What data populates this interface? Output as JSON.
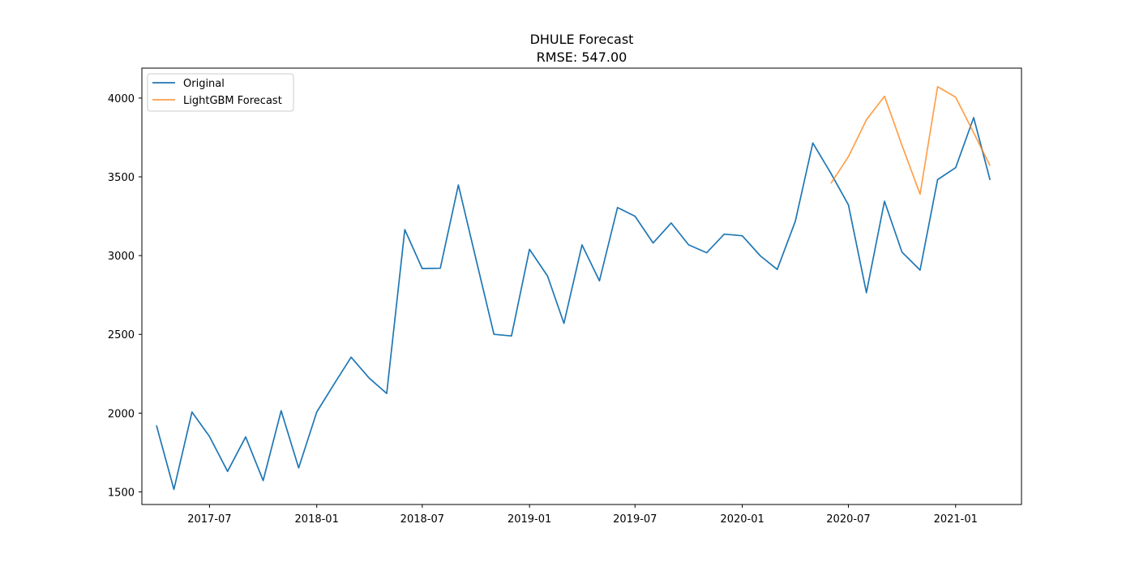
{
  "chart_data": {
    "type": "line",
    "title": "DHULE Forecast",
    "subtitle": "RMSE: 547.00",
    "xlabel": "",
    "ylabel": "",
    "xlim": [
      "2017-03-07",
      "2021-04-24"
    ],
    "ylim": [
      1420,
      4190
    ],
    "x_ticks": [
      "2017-07",
      "2018-01",
      "2018-07",
      "2019-01",
      "2019-07",
      "2020-01",
      "2020-07",
      "2021-01"
    ],
    "y_ticks": [
      1500,
      2000,
      2500,
      3000,
      3500,
      4000
    ],
    "grid": false,
    "legend": {
      "position": "top-left"
    },
    "series": [
      {
        "name": "Original",
        "color": "#1f77b4",
        "x": [
          "2017-04",
          "2017-05",
          "2017-06",
          "2017-07",
          "2017-08",
          "2017-09",
          "2017-10",
          "2017-11",
          "2017-12",
          "2018-01",
          "2018-02",
          "2018-03",
          "2018-04",
          "2018-05",
          "2018-06",
          "2018-07",
          "2018-08",
          "2018-09",
          "2018-10",
          "2018-11",
          "2018-12",
          "2019-01",
          "2019-02",
          "2019-03",
          "2019-04",
          "2019-05",
          "2019-06",
          "2019-07",
          "2019-08",
          "2019-09",
          "2019-10",
          "2019-11",
          "2019-12",
          "2020-01",
          "2020-02",
          "2020-03",
          "2020-04",
          "2020-05",
          "2020-06",
          "2020-07",
          "2020-08",
          "2020-09",
          "2020-10",
          "2020-11",
          "2020-12",
          "2021-01",
          "2021-02",
          "2021-03"
        ],
        "values": [
          1922,
          1516,
          2007,
          1852,
          1630,
          1849,
          1572,
          2015,
          1652,
          2007,
          2192,
          2355,
          2222,
          2125,
          3165,
          2918,
          2920,
          3448,
          2980,
          2500,
          2490,
          3040,
          2870,
          2570,
          3068,
          2840,
          3305,
          3250,
          3080,
          3207,
          3068,
          3018,
          3136,
          3126,
          2998,
          2912,
          3218,
          3715,
          3522,
          3322,
          2765,
          3345,
          3022,
          2908,
          3482,
          3558,
          3876,
          3480
        ]
      },
      {
        "name": "LightGBM Forecast",
        "color": "#ff7f0e",
        "x": [
          "2020-06",
          "2020-07",
          "2020-08",
          "2020-09",
          "2020-10",
          "2020-11",
          "2020-12",
          "2021-01",
          "2021-02",
          "2021-03"
        ],
        "values": [
          3458,
          3628,
          3862,
          4012,
          3700,
          3390,
          4072,
          4005,
          3780,
          3570
        ]
      }
    ]
  }
}
